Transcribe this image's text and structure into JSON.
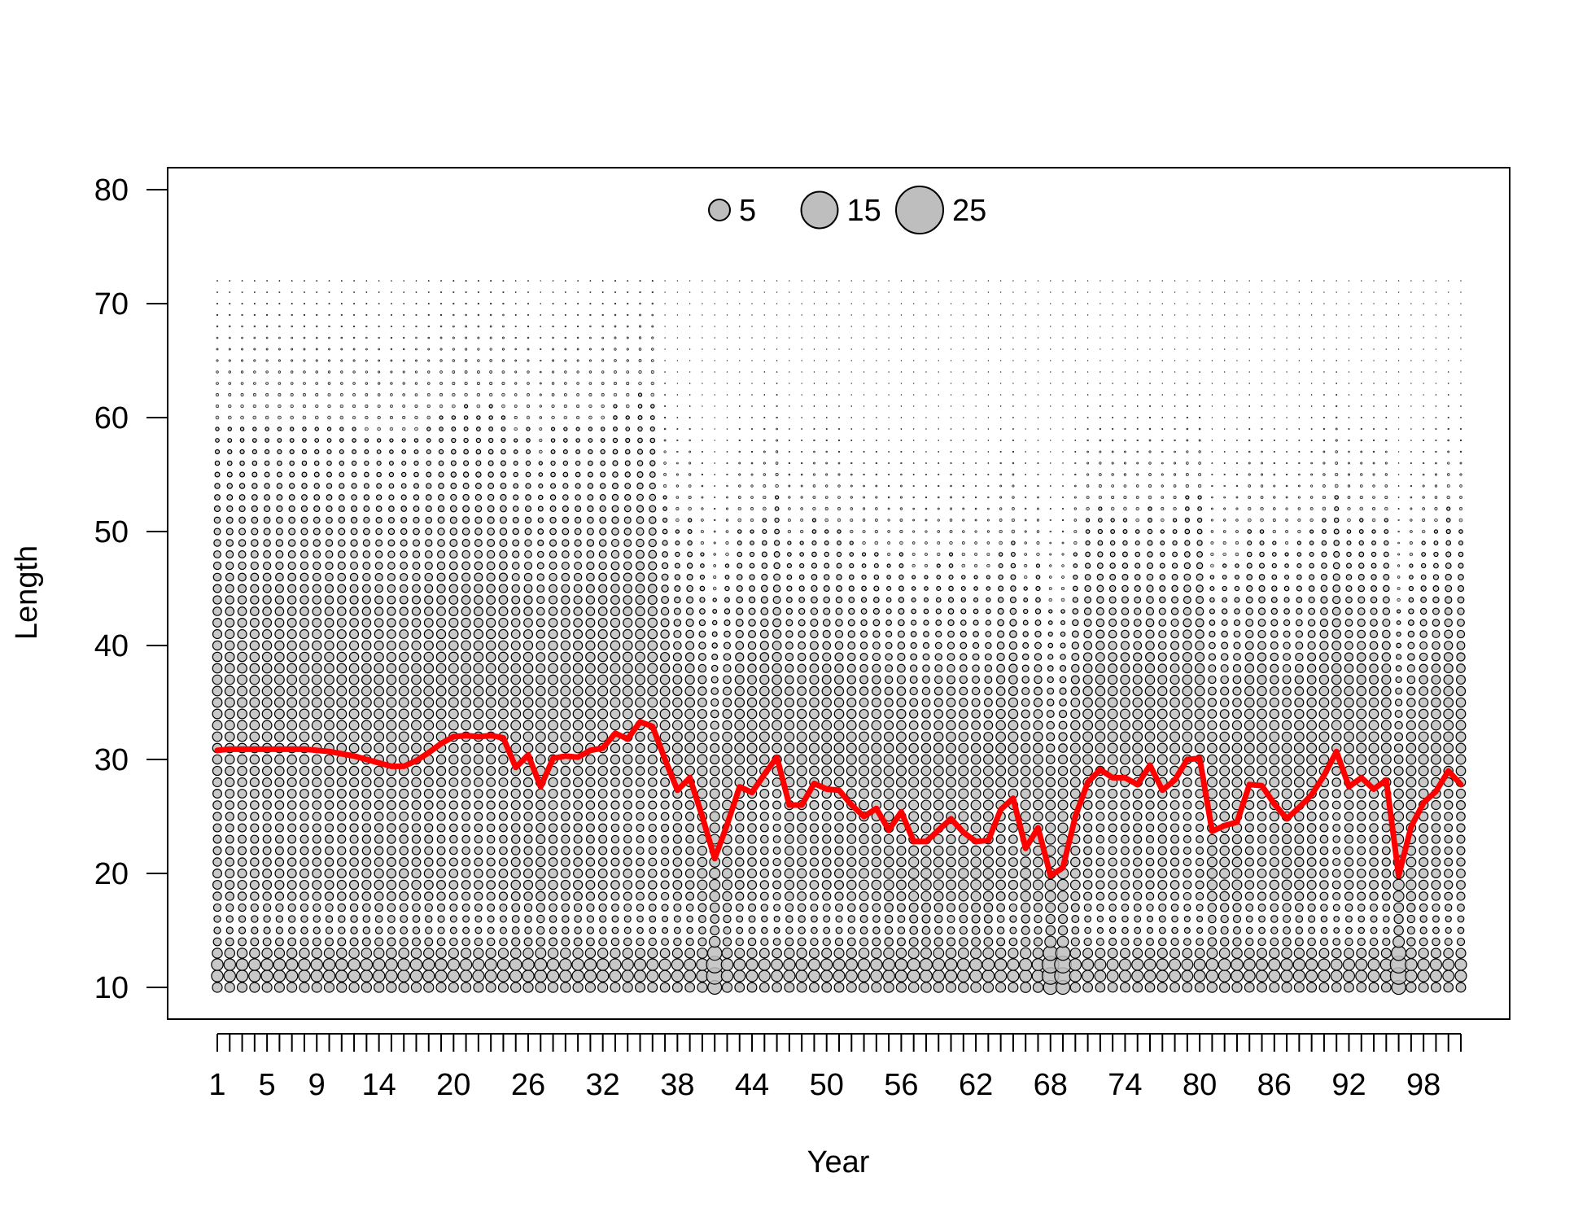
{
  "chart_data": {
    "type": "scatter",
    "subtype": "bubble",
    "xlabel": "Year",
    "ylabel": "Length",
    "x_range": [
      1,
      101
    ],
    "x_tick_labels": [
      1,
      5,
      9,
      14,
      20,
      26,
      32,
      38,
      44,
      50,
      56,
      62,
      68,
      74,
      80,
      86,
      92,
      98
    ],
    "y_ticks": [
      10,
      20,
      30,
      40,
      50,
      60,
      70,
      80
    ],
    "ylim": [
      7,
      82
    ],
    "length_bins": [
      10,
      72,
      1
    ],
    "legend": {
      "placement": "top-center",
      "sizes": [
        5,
        15,
        25
      ],
      "labels": [
        "5",
        "15",
        "25"
      ]
    },
    "bubble_fill": "#bebebe",
    "bubble_stroke": "#000000",
    "line_color": "#ff0000",
    "mean_length_series": {
      "x": [
        1,
        2,
        3,
        4,
        5,
        6,
        7,
        8,
        9,
        10,
        11,
        12,
        13,
        14,
        15,
        16,
        17,
        18,
        19,
        20,
        21,
        22,
        23,
        24,
        25,
        26,
        27,
        28,
        29,
        30,
        31,
        32,
        33,
        34,
        35,
        36,
        37,
        38,
        39,
        40,
        41,
        42,
        43,
        44,
        45,
        46,
        47,
        48,
        49,
        50,
        51,
        52,
        53,
        54,
        55,
        56,
        57,
        58,
        59,
        60,
        61,
        62,
        63,
        64,
        65,
        66,
        67,
        68,
        69,
        70,
        71,
        72,
        73,
        74,
        75,
        76,
        77,
        78,
        79,
        80,
        81,
        82,
        83,
        84,
        85,
        86,
        87,
        88,
        89,
        90,
        91,
        92,
        93,
        94,
        95,
        96,
        97,
        98,
        99,
        100,
        101
      ],
      "y": [
        30.8,
        30.9,
        30.9,
        30.9,
        30.9,
        30.9,
        30.9,
        30.9,
        30.8,
        30.7,
        30.5,
        30.3,
        30.0,
        29.7,
        29.4,
        29.4,
        29.9,
        30.6,
        31.4,
        32.0,
        32.1,
        32.0,
        32.1,
        31.9,
        29.3,
        30.4,
        27.6,
        30.1,
        30.3,
        30.2,
        30.8,
        31.0,
        32.3,
        31.8,
        33.3,
        32.9,
        30.0,
        27.3,
        28.4,
        25.0,
        21.3,
        24.3,
        27.6,
        27.1,
        28.7,
        30.2,
        26.0,
        26.0,
        27.9,
        27.4,
        27.3,
        26.0,
        25.0,
        25.7,
        23.8,
        25.4,
        22.8,
        22.8,
        23.8,
        24.8,
        23.6,
        22.8,
        22.9,
        25.6,
        26.6,
        22.2,
        24.0,
        19.8,
        20.5,
        25.0,
        28.0,
        29.1,
        28.4,
        28.4,
        27.8,
        29.5,
        27.3,
        28.2,
        30.0,
        30.1,
        23.7,
        24.2,
        24.5,
        27.8,
        27.7,
        26.1,
        24.8,
        25.8,
        26.9,
        28.6,
        30.7,
        27.6,
        28.4,
        27.4,
        28.2,
        19.8,
        24.1,
        26.2,
        27.2,
        29.0,
        27.8
      ]
    }
  }
}
